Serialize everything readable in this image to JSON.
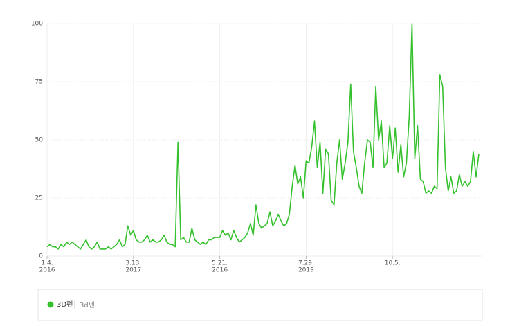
{
  "chart_data": {
    "type": "line",
    "xlim": [
      0,
      155
    ],
    "xticks": [
      {
        "value": 0,
        "label": "1.4.",
        "sublabel": "2016"
      },
      {
        "value": 31,
        "label": "3.13.",
        "sublabel": "2017"
      },
      {
        "value": 62,
        "label": "5.21.",
        "sublabel": "2016"
      },
      {
        "value": 93,
        "label": "7.29.",
        "sublabel": "2019"
      },
      {
        "value": 124,
        "label": "10.5."
      }
    ],
    "ylim": [
      0,
      100
    ],
    "yticks": [
      0,
      25,
      50,
      75,
      100
    ],
    "grid": true,
    "series": [
      {
        "name": "3D펜",
        "keywords": "3d펜",
        "color": "#35c12d",
        "values": [
          4,
          5,
          4,
          4,
          3,
          5,
          4,
          6,
          5,
          6,
          5,
          4,
          3,
          5,
          7,
          4,
          3,
          4,
          6,
          3,
          3,
          3,
          4,
          3,
          4,
          5,
          7,
          4,
          5,
          13,
          9,
          11,
          7,
          6,
          6,
          7,
          9,
          6,
          7,
          6,
          6,
          7,
          9,
          6,
          5,
          5,
          4,
          49,
          7,
          8,
          6,
          6,
          12,
          7,
          6,
          5,
          6,
          5,
          7,
          7,
          8,
          8,
          8,
          11,
          9,
          10,
          7,
          11,
          8,
          6,
          7,
          8,
          10,
          14,
          9,
          22,
          14,
          12,
          13,
          14,
          19,
          13,
          15,
          18,
          15,
          13,
          14,
          18,
          30,
          39,
          31,
          34,
          25,
          41,
          40,
          47,
          58,
          38,
          49,
          27,
          46,
          44,
          24,
          22,
          40,
          50,
          33,
          40,
          49,
          74,
          45,
          38,
          30,
          27,
          40,
          50,
          49,
          38,
          73,
          50,
          58,
          38,
          40,
          56,
          42,
          55,
          36,
          48,
          34,
          40,
          60,
          100,
          42,
          56,
          33,
          32,
          27,
          28,
          27,
          30,
          29,
          78,
          73,
          38,
          28,
          34,
          27,
          28,
          35,
          30,
          32,
          30,
          32,
          45,
          34,
          44
        ]
      }
    ]
  }
}
